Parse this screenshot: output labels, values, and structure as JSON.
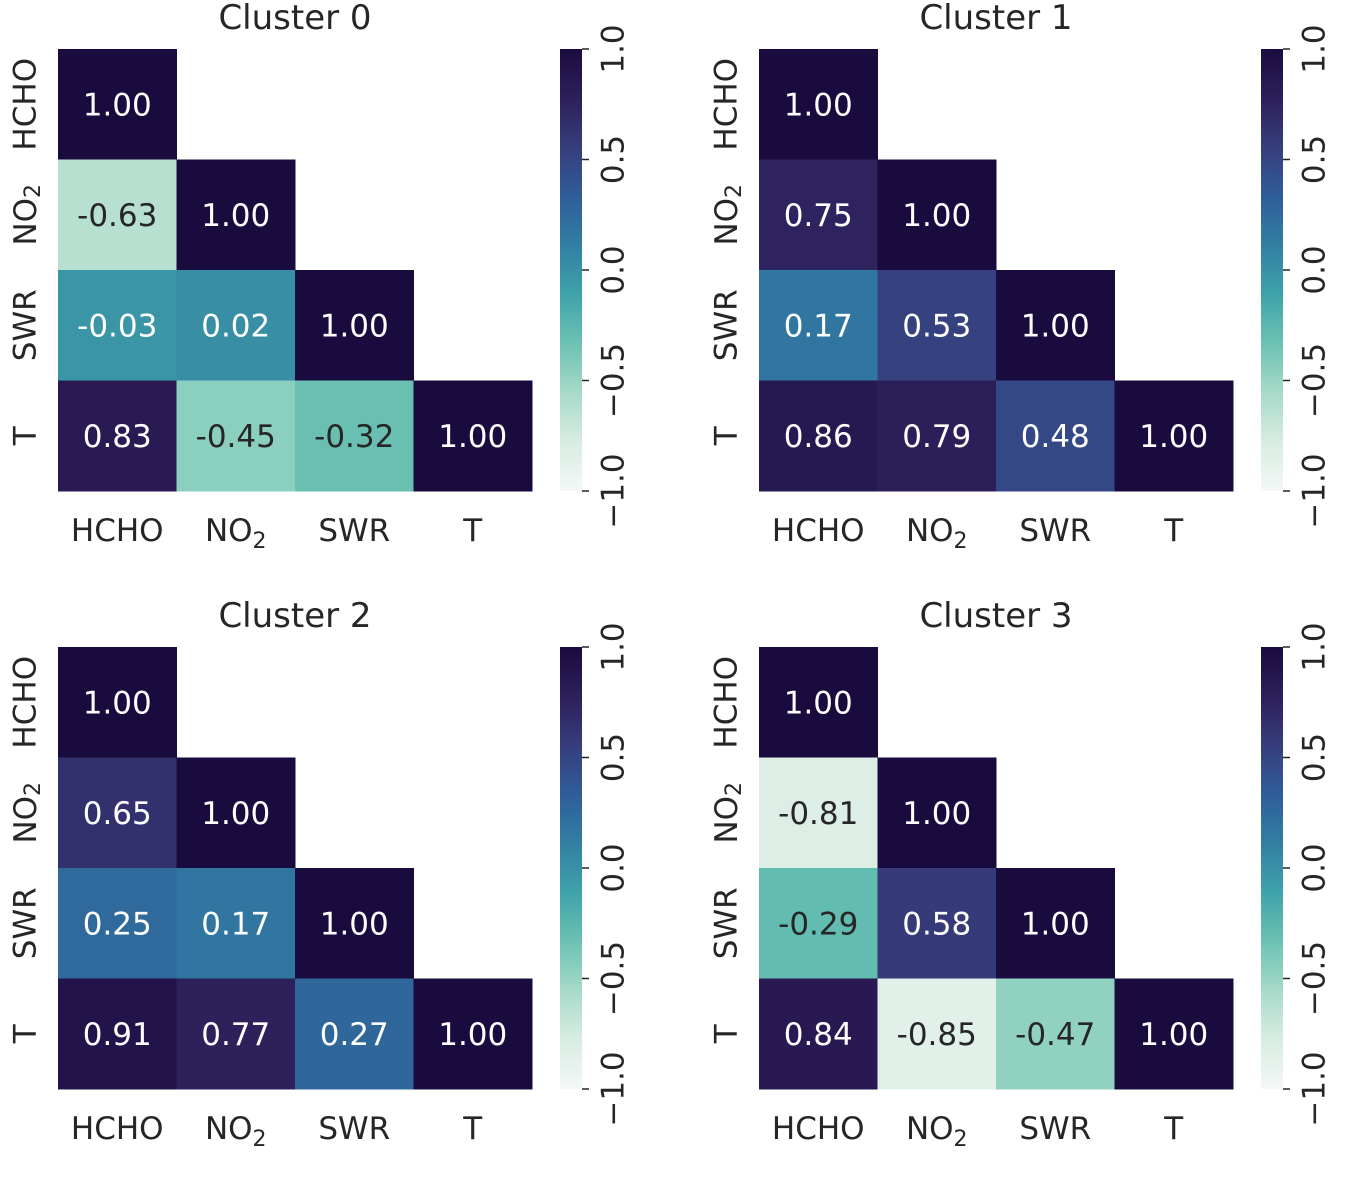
{
  "chart_data": [
    {
      "type": "heatmap",
      "title": "Cluster 0",
      "variables": [
        "HCHO",
        "NO2",
        "SWR",
        "T"
      ],
      "x_labels": [
        "HCHO",
        "NO2",
        "SWR",
        "T"
      ],
      "y_labels": [
        "HCHO",
        "NO2",
        "SWR",
        "T"
      ],
      "matrix": [
        [
          1.0
        ],
        [
          -0.63,
          1.0
        ],
        [
          -0.03,
          0.02,
          1.0
        ],
        [
          0.83,
          -0.45,
          -0.32,
          1.0
        ]
      ],
      "cell_labels": [
        [
          "1.00"
        ],
        [
          "-0.63",
          "1.00"
        ],
        [
          "-0.03",
          "0.02",
          "1.00"
        ],
        [
          "0.83",
          "-0.45",
          "-0.32",
          "1.00"
        ]
      ],
      "mask": "upper-triangle",
      "vmin": -1.0,
      "vmax": 1.0,
      "colorbar_ticks": [
        "1.0",
        "0.5",
        "0.0",
        "−0.5",
        "−1.0"
      ]
    },
    {
      "type": "heatmap",
      "title": "Cluster 1",
      "variables": [
        "HCHO",
        "NO2",
        "SWR",
        "T"
      ],
      "x_labels": [
        "HCHO",
        "NO2",
        "SWR",
        "T"
      ],
      "y_labels": [
        "HCHO",
        "NO2",
        "SWR",
        "T"
      ],
      "matrix": [
        [
          1.0
        ],
        [
          0.75,
          1.0
        ],
        [
          0.17,
          0.53,
          1.0
        ],
        [
          0.86,
          0.79,
          0.48,
          1.0
        ]
      ],
      "cell_labels": [
        [
          "1.00"
        ],
        [
          "0.75",
          "1.00"
        ],
        [
          "0.17",
          "0.53",
          "1.00"
        ],
        [
          "0.86",
          "0.79",
          "0.48",
          "1.00"
        ]
      ],
      "mask": "upper-triangle",
      "vmin": -1.0,
      "vmax": 1.0,
      "colorbar_ticks": [
        "1.0",
        "0.5",
        "0.0",
        "−0.5",
        "−1.0"
      ]
    },
    {
      "type": "heatmap",
      "title": "Cluster 2",
      "variables": [
        "HCHO",
        "NO2",
        "SWR",
        "T"
      ],
      "x_labels": [
        "HCHO",
        "NO2",
        "SWR",
        "T"
      ],
      "y_labels": [
        "HCHO",
        "NO2",
        "SWR",
        "T"
      ],
      "matrix": [
        [
          1.0
        ],
        [
          0.65,
          1.0
        ],
        [
          0.25,
          0.17,
          1.0
        ],
        [
          0.91,
          0.77,
          0.27,
          1.0
        ]
      ],
      "cell_labels": [
        [
          "1.00"
        ],
        [
          "0.65",
          "1.00"
        ],
        [
          "0.25",
          "0.17",
          "1.00"
        ],
        [
          "0.91",
          "0.77",
          "0.27",
          "1.00"
        ]
      ],
      "mask": "upper-triangle",
      "vmin": -1.0,
      "vmax": 1.0,
      "colorbar_ticks": [
        "1.0",
        "0.5",
        "0.0",
        "−0.5",
        "−1.0"
      ]
    },
    {
      "type": "heatmap",
      "title": "Cluster 3",
      "variables": [
        "HCHO",
        "NO2",
        "SWR",
        "T"
      ],
      "x_labels": [
        "HCHO",
        "NO2",
        "SWR",
        "T"
      ],
      "y_labels": [
        "HCHO",
        "NO2",
        "SWR",
        "T"
      ],
      "matrix": [
        [
          1.0
        ],
        [
          -0.81,
          1.0
        ],
        [
          -0.29,
          0.58,
          1.0
        ],
        [
          0.84,
          -0.85,
          -0.47,
          1.0
        ]
      ],
      "cell_labels": [
        [
          "1.00"
        ],
        [
          "-0.81",
          "1.00"
        ],
        [
          "-0.29",
          "0.58",
          "1.00"
        ],
        [
          "0.84",
          "-0.85",
          "-0.47",
          "1.00"
        ]
      ],
      "mask": "upper-triangle",
      "vmin": -1.0,
      "vmax": 1.0,
      "colorbar_ticks": [
        "1.0",
        "0.5",
        "0.0",
        "−0.5",
        "−1.0"
      ]
    }
  ],
  "colormap": {
    "name": "mako_r",
    "stops": [
      "#f4f8f6",
      "#d8ece3",
      "#a7dac8",
      "#6cc2b3",
      "#3fa3a9",
      "#327fa3",
      "#2f5d98",
      "#373d7c",
      "#2d1f5a",
      "#1a0b3f"
    ]
  },
  "colors": {
    "annot_light": "#ffffff",
    "annot_dark": "#262626",
    "tick_color": "#262626"
  }
}
